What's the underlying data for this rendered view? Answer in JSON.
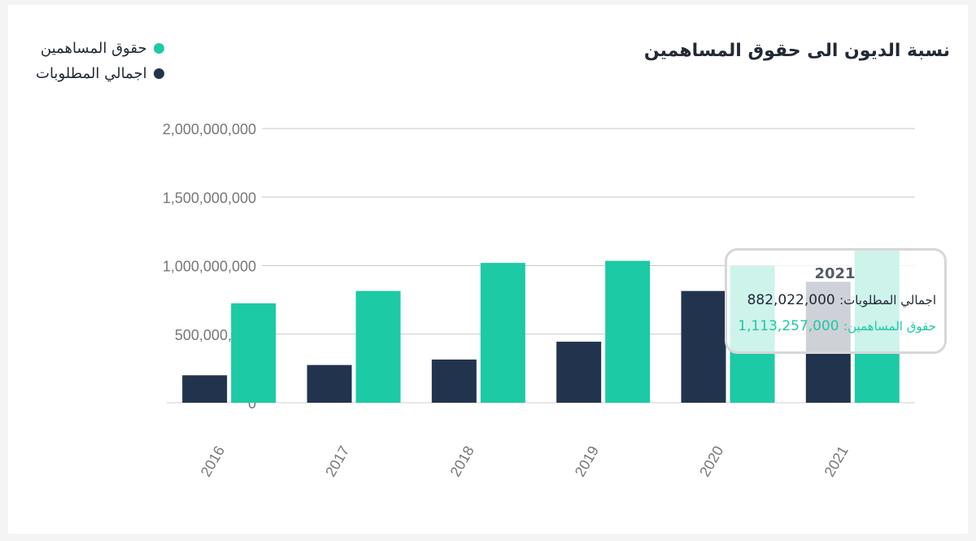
{
  "chart_data": {
    "type": "bar",
    "title": "نسبة الديون الى حقوق المساهمين",
    "categories": [
      "2016",
      "2017",
      "2018",
      "2019",
      "2020",
      "2021"
    ],
    "series": [
      {
        "name": "اجمالي المطلوبات",
        "color": "#22344d",
        "values": [
          200000000,
          275000000,
          315000000,
          445000000,
          815000000,
          882022000
        ]
      },
      {
        "name": "حقوق المساهمين",
        "color": "#1ccaa5",
        "values": [
          725000000,
          815000000,
          1020000000,
          1035000000,
          1000000000,
          1113257000
        ]
      }
    ],
    "yticks": [
      "0",
      "500,000,000",
      "1,000,000,000",
      "1,500,000,000",
      "2,000,000,000"
    ],
    "ylim": [
      0,
      2000000000
    ],
    "xlabel": "",
    "ylabel": "",
    "legend_position": "top-left",
    "grid": true
  },
  "legend": [
    {
      "label": "حقوق المساهمين",
      "color": "#1ccaa5"
    },
    {
      "label": "اجمالي المطلوبات",
      "color": "#22344d"
    }
  ],
  "tooltip": {
    "year": "2021",
    "liabilities_label": "اجمالي المطلوبات:",
    "liabilities_value": "882,022,000",
    "equity_label": "حقوق المساهمين:",
    "equity_value": "1,113,257,000"
  }
}
